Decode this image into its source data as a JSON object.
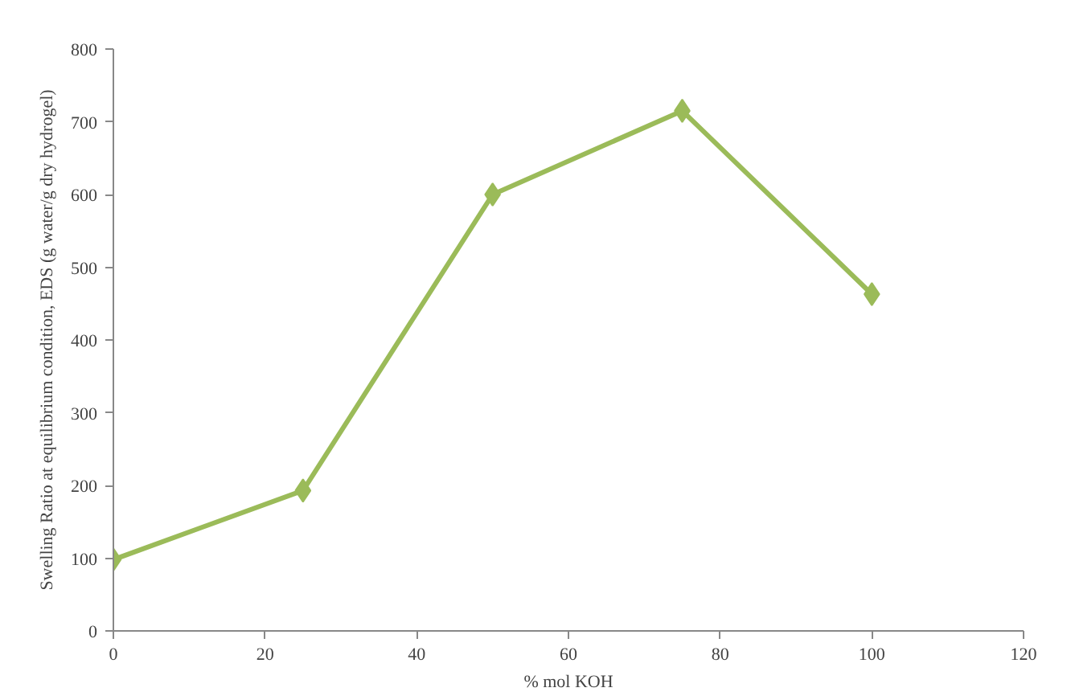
{
  "chart_data": {
    "type": "line",
    "xlabel": "% mol KOH",
    "ylabel": "Swelling Ratio at equilibrium condition, EDS (g water/g dry hydrogel)",
    "x": [
      0,
      25,
      50,
      75,
      100
    ],
    "series": [
      {
        "color": "#9bbb59",
        "values": [
          98,
          193,
          600,
          715,
          463
        ]
      }
    ],
    "xlim": [
      0,
      120
    ],
    "xticks": [
      0,
      20,
      40,
      60,
      80,
      100,
      120
    ],
    "ylim": [
      0,
      800
    ],
    "yticks": [
      0,
      100,
      200,
      300,
      400,
      500,
      600,
      700,
      800
    ],
    "grid": false,
    "marker": "diamond",
    "line_style": "solid"
  }
}
